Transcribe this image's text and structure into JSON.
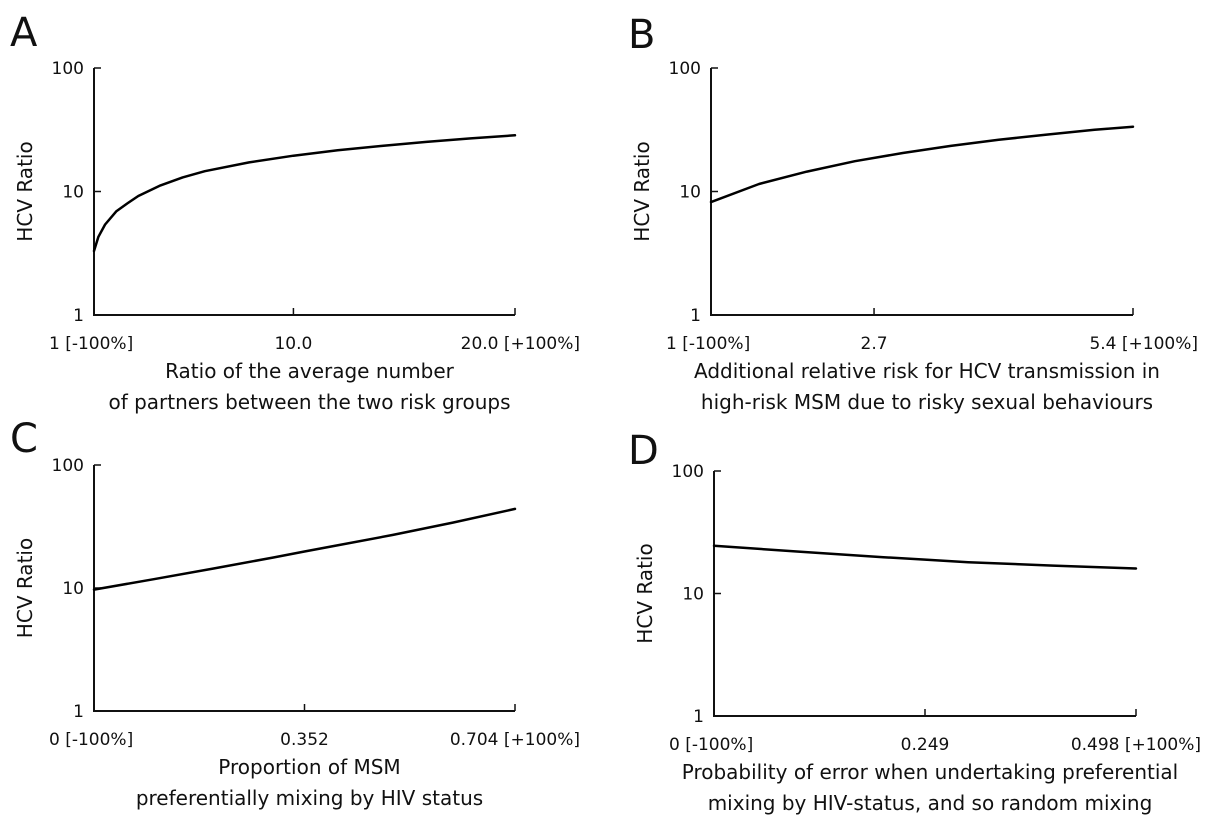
{
  "chart_data": [
    {
      "panel": "A",
      "type": "line",
      "ylabel": "HCV Ratio",
      "xlabel": [
        "Ratio of the average number",
        "of partners between the two risk groups"
      ],
      "y_scale": "log",
      "ylim": [
        1,
        100
      ],
      "y_ticks": [
        "1",
        "10",
        "100"
      ],
      "xlim": [
        1,
        20
      ],
      "x_tick_values": [
        1,
        10,
        20
      ],
      "x_tick_labels": [
        "1 [-100%]",
        "10.0",
        "20.0 [+100%]"
      ],
      "series": [
        {
          "x": [
            1,
            1.2,
            1.5,
            2,
            2.5,
            3,
            4,
            5,
            6,
            8,
            10,
            12,
            14,
            16,
            18,
            20
          ],
          "y": [
            3.3,
            4.3,
            5.4,
            6.9,
            8.0,
            9.2,
            11.2,
            13.0,
            14.6,
            17.2,
            19.5,
            21.6,
            23.4,
            25.2,
            26.9,
            28.5
          ]
        }
      ]
    },
    {
      "panel": "B",
      "type": "line",
      "ylabel": "HCV Ratio",
      "xlabel": [
        "Additional relative risk for HCV transmission in",
        "high-risk MSM due to risky sexual behaviours"
      ],
      "y_scale": "log",
      "ylim": [
        1,
        100
      ],
      "y_ticks": [
        "1",
        "10",
        "100"
      ],
      "xlim": [
        1,
        5.4
      ],
      "x_tick_values": [
        1,
        2.7,
        5.4
      ],
      "x_tick_labels": [
        "1 [-100%]",
        "2.7",
        "5.4 [+100%]"
      ],
      "series": [
        {
          "x": [
            1,
            1.5,
            2,
            2.5,
            3,
            3.5,
            4,
            4.5,
            5,
            5.4
          ],
          "y": [
            8.2,
            11.5,
            14.5,
            17.6,
            20.5,
            23.4,
            26.2,
            28.9,
            31.6,
            33.5
          ]
        }
      ]
    },
    {
      "panel": "C",
      "type": "line",
      "ylabel": "HCV Ratio",
      "xlabel": [
        "Proportion of MSM",
        "preferentially mixing by HIV status"
      ],
      "y_scale": "log",
      "ylim": [
        1,
        100
      ],
      "y_ticks": [
        "1",
        "10",
        "100"
      ],
      "xlim": [
        0,
        0.704
      ],
      "x_tick_values": [
        0,
        0.352,
        0.704
      ],
      "x_tick_labels": [
        "0 [-100%]",
        "0.352",
        "0.704 [+100%]"
      ],
      "series": [
        {
          "x": [
            0,
            0.1,
            0.2,
            0.3,
            0.352,
            0.4,
            0.5,
            0.6,
            0.704
          ],
          "y": [
            9.7,
            11.8,
            14.4,
            17.7,
            19.8,
            21.9,
            27.0,
            34.0,
            44.0
          ]
        }
      ]
    },
    {
      "panel": "D",
      "type": "line",
      "ylabel": "HCV Ratio",
      "xlabel": [
        "Probability of error when undertaking preferential",
        "mixing by HIV-status, and so random mixing"
      ],
      "y_scale": "log",
      "ylim": [
        1,
        100
      ],
      "y_ticks": [
        "1",
        "10",
        "100"
      ],
      "xlim": [
        0,
        0.498
      ],
      "x_tick_values": [
        0,
        0.249,
        0.498
      ],
      "x_tick_labels": [
        "0 [-100%]",
        "0.249",
        "0.498 [+100%]"
      ],
      "series": [
        {
          "x": [
            0,
            0.1,
            0.2,
            0.249,
            0.3,
            0.4,
            0.498
          ],
          "y": [
            24.5,
            22.0,
            19.8,
            18.9,
            18.0,
            16.9,
            16.0
          ]
        }
      ]
    }
  ]
}
